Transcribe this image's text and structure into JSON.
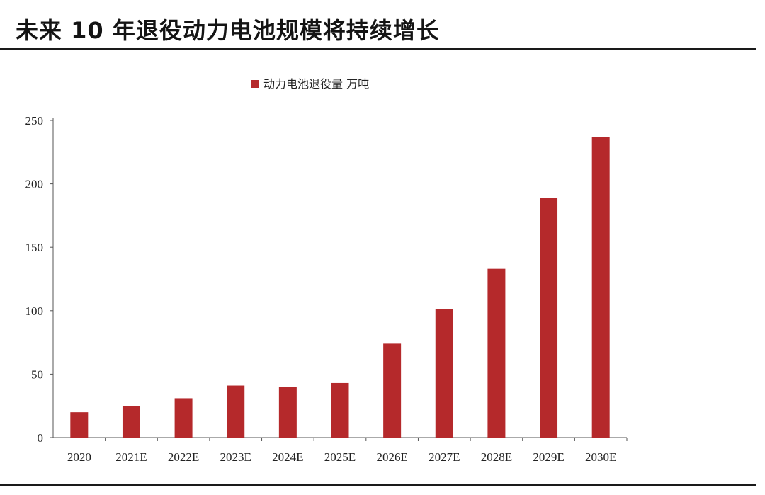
{
  "chart_data": {
    "type": "bar",
    "title": "未来 10 年退役动力电池规模将持续增长",
    "categories": [
      "2020",
      "2021E",
      "2022E",
      "2023E",
      "2024E",
      "2025E",
      "2026E",
      "2027E",
      "2028E",
      "2029E",
      "2030E"
    ],
    "series": [
      {
        "name": "动力电池退役量 万吨",
        "values": [
          20,
          25,
          31,
          41,
          40,
          43,
          74,
          101,
          133,
          189,
          237
        ],
        "color": "#b5292b"
      }
    ],
    "yticks": [
      "0",
      "50",
      "100",
      "150",
      "200",
      "250"
    ],
    "ylim": [
      0,
      250
    ],
    "xlabel": "",
    "ylabel": "",
    "legend": "top-center",
    "grid": false
  }
}
